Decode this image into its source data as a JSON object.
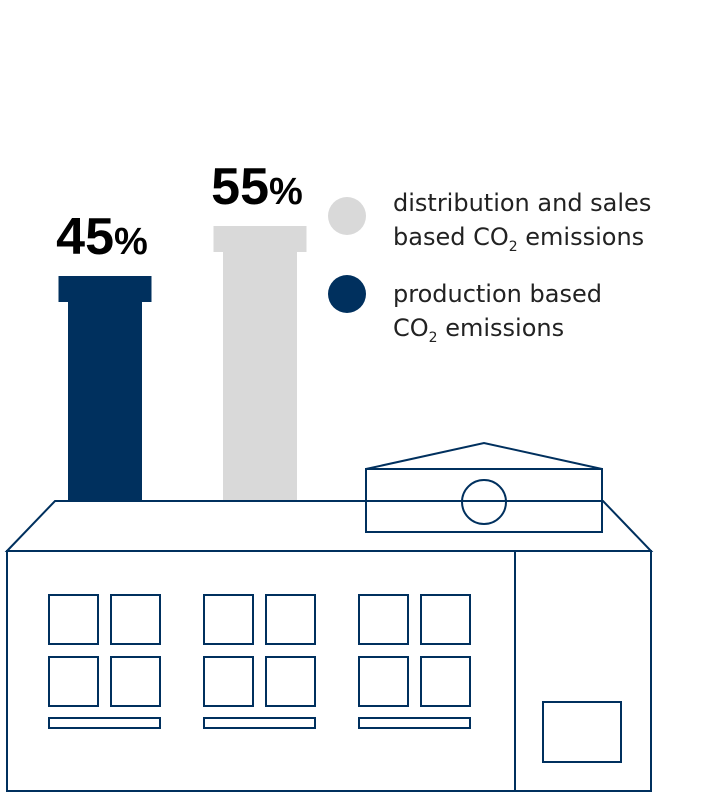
{
  "chart_data": {
    "type": "bar",
    "categories": [
      "production based CO2 emissions",
      "distribution and sales based CO2 emissions"
    ],
    "values": [
      45,
      55
    ],
    "ylim": [
      0,
      100
    ],
    "colors": [
      "#00305e",
      "#d9d9d9"
    ],
    "data_labels": [
      "45",
      "55"
    ],
    "unit": "%"
  },
  "legend": [
    {
      "key": "distribution",
      "color": "#d9d9d9",
      "line1": "distribution and sales",
      "line2_pre": "based CO",
      "line2_sub": "2",
      "line2_post": " emissions"
    },
    {
      "key": "production",
      "color": "#00305e",
      "line1": "production based",
      "line2_pre": "CO",
      "line2_sub": "2",
      "line2_post": " emissions"
    }
  ],
  "colors": {
    "outline": "#00305e",
    "background": "#ffffff"
  },
  "icons": [
    "factory-building-icon",
    "chimney-icon"
  ]
}
